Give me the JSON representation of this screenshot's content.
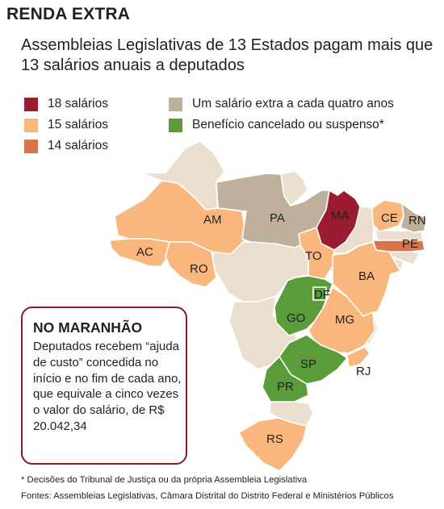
{
  "header": {
    "kicker": "RENDA EXTRA",
    "subtitle": "Assembleias Legislativas de 13 Estados pagam mais que 13 salários anuais a deputados"
  },
  "legend": [
    {
      "label": "18 salários",
      "color": "#9b1b30"
    },
    {
      "label": "15 salários",
      "color": "#f9b77d"
    },
    {
      "label": "14 salários",
      "color": "#d9744a"
    },
    {
      "label": "Um salário extra a cada quatro anos",
      "color": "#bfb09c"
    },
    {
      "label": "Benefício cancelado ou suspenso*",
      "color": "#5a9c3a"
    }
  ],
  "map": {
    "neutral_color": "#eadfce",
    "states": [
      {
        "code": "AM",
        "category": "15 salários"
      },
      {
        "code": "AC",
        "category": "15 salários"
      },
      {
        "code": "RO",
        "category": "15 salários"
      },
      {
        "code": "PA",
        "category": "Um salário extra a cada quatro anos"
      },
      {
        "code": "MA",
        "category": "18 salários"
      },
      {
        "code": "CE",
        "category": "15 salários"
      },
      {
        "code": "RN",
        "category": "Um salário extra a cada quatro anos"
      },
      {
        "code": "PE",
        "category": "14 salários"
      },
      {
        "code": "TO",
        "category": "15 salários"
      },
      {
        "code": "BA",
        "category": "15 salários"
      },
      {
        "code": "DF",
        "category": "Benefício cancelado ou suspenso*"
      },
      {
        "code": "GO",
        "category": "Benefício cancelado ou suspenso*"
      },
      {
        "code": "MG",
        "category": "15 salários"
      },
      {
        "code": "SP",
        "category": "Benefício cancelado ou suspenso*"
      },
      {
        "code": "RJ",
        "category": "15 salários"
      },
      {
        "code": "PR",
        "category": "Benefício cancelado ou suspenso*"
      },
      {
        "code": "RS",
        "category": "15 salários"
      }
    ]
  },
  "callout": {
    "heading": "NO MARANHÃO",
    "body": "Deputados recebem “ajuda de custo” concedida no início e no fim de cada ano, que equivale a cinco vezes o valor do salário, de R$ 20.042,34"
  },
  "footnote": "* Decisões do Tribunal de Justiça ou da própria Assembleia Legislativa",
  "sources": "Fontes: Assembleias Legislativas, Câmara Distrital do Distrito Federal e Ministérios Públicos"
}
